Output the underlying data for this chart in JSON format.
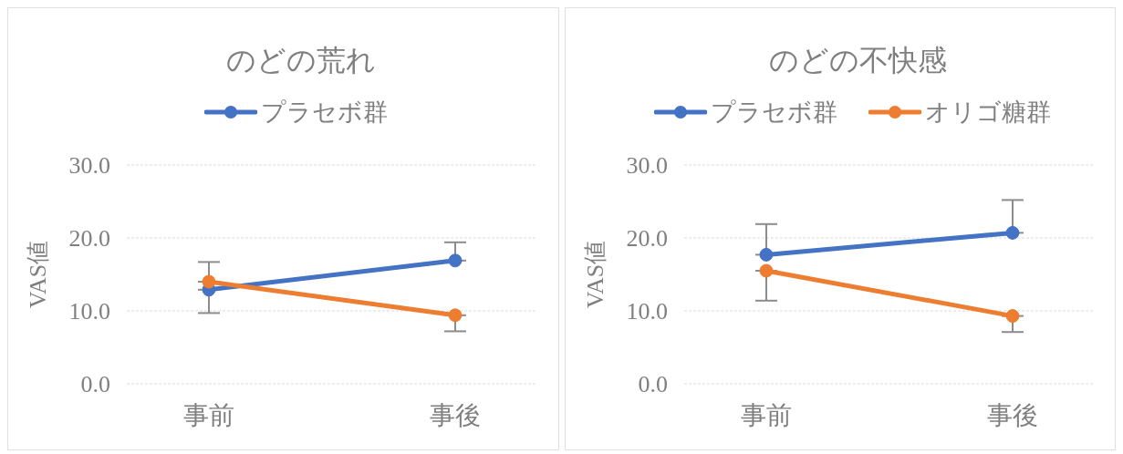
{
  "chart_data": [
    {
      "type": "line",
      "title": "のどの荒れ",
      "ylabel": "VAS値",
      "categories": [
        "事前",
        "事後"
      ],
      "series": [
        {
          "name": "プラセボ群",
          "color": "#4472c4",
          "values": [
            12.9,
            16.9
          ],
          "errors": [
            [
              12.9,
              16.7
            ],
            [
              16.9,
              19.4
            ]
          ]
        },
        {
          "color": "#ed7d31",
          "values": [
            14.0,
            9.4
          ],
          "errors": [
            [
              9.7,
              14.0
            ],
            [
              7.2,
              9.4
            ]
          ]
        }
      ],
      "ylim": [
        0,
        30
      ],
      "yticks": [
        {
          "value": 0,
          "label": "0.0"
        },
        {
          "value": 10,
          "label": "10.0"
        },
        {
          "value": 20,
          "label": "20.0"
        },
        {
          "value": 30,
          "label": "30.0"
        }
      ],
      "grid": "y",
      "legend": "top",
      "marker": "circle",
      "line_style": "solid"
    },
    {
      "type": "line",
      "title": "のどの不快感",
      "ylabel": "VAS値",
      "categories": [
        "事前",
        "事後"
      ],
      "series": [
        {
          "name": "プラセボ群",
          "color": "#4472c4",
          "values": [
            17.7,
            20.7
          ],
          "errors": [
            [
              17.7,
              21.9
            ],
            [
              20.7,
              25.2
            ]
          ]
        },
        {
          "name": "オリゴ糖群",
          "color": "#ed7d31",
          "values": [
            15.5,
            9.3
          ],
          "errors": [
            [
              11.4,
              15.5
            ],
            [
              7.1,
              9.3
            ]
          ]
        }
      ],
      "ylim": [
        0,
        30
      ],
      "yticks": [
        {
          "value": 0,
          "label": "0.0"
        },
        {
          "value": 10,
          "label": "10.0"
        },
        {
          "value": 20,
          "label": "20.0"
        },
        {
          "value": 30,
          "label": "30.0"
        }
      ],
      "grid": "y",
      "legend": "top",
      "marker": "circle",
      "line_style": "solid"
    }
  ]
}
